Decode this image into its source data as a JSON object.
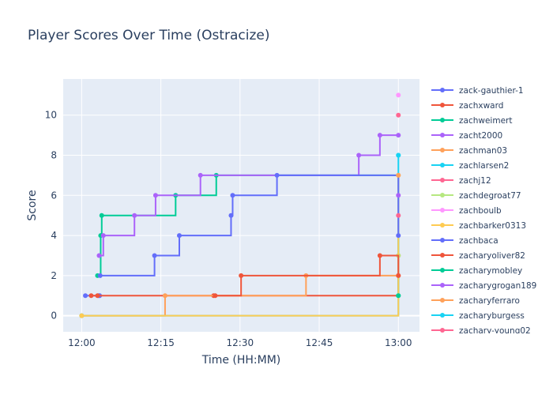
{
  "chart_data": {
    "type": "line",
    "title": "Player Scores Over Time (Ostracize)",
    "xlabel": "Time (HH:MM)",
    "ylabel": "Score",
    "x_ticks": [
      "12:00",
      "12:15",
      "12:30",
      "12:45",
      "13:00"
    ],
    "y_ticks": [
      0,
      2,
      4,
      6,
      8,
      10
    ],
    "xlim": [
      -3.5,
      64
    ],
    "ylim": [
      -0.8,
      11.8
    ],
    "grid": true,
    "legend_position": "right",
    "series": [
      {
        "name": "zack-gauthier-1",
        "color": "#636efa",
        "x": [
          0.7,
          3.2,
          3.4
        ],
        "y": [
          1,
          1,
          1
        ]
      },
      {
        "name": "zachxward",
        "color": "#EF553B",
        "x": [
          1.8,
          3.0,
          25.0,
          60.0
        ],
        "y": [
          1,
          1,
          1,
          2
        ]
      },
      {
        "name": "zachweimert",
        "color": "#00cc96",
        "x": [
          3.0,
          3.6,
          3.8,
          17.8,
          25.5,
          60.0
        ],
        "y": [
          2,
          4,
          5,
          6,
          7,
          1
        ]
      },
      {
        "name": "zacht2000",
        "color": "#ab63fa",
        "x": [
          3.3,
          4.1,
          10.0,
          14.0,
          22.5,
          52.5,
          56.5,
          60.0
        ],
        "y": [
          3,
          4,
          5,
          6,
          7,
          8,
          9,
          9
        ]
      },
      {
        "name": "zachman03",
        "color": "#FFA15A",
        "x": [
          0.0,
          15.8,
          42.5,
          60.0
        ],
        "y": [
          0,
          1,
          2,
          3
        ]
      },
      {
        "name": "zachlarsen2",
        "color": "#19d3f3",
        "x": [
          0.0,
          60.0
        ],
        "y": [
          0,
          8
        ]
      },
      {
        "name": "zachj12",
        "color": "#FF6692",
        "x": [
          60.0
        ],
        "y": [
          10
        ]
      },
      {
        "name": "zachdegroat77",
        "color": "#B6E880",
        "x": [
          60.0
        ],
        "y": [
          3
        ]
      },
      {
        "name": "zachboulb",
        "color": "#FF97FF",
        "x": [
          60.0
        ],
        "y": [
          11
        ]
      },
      {
        "name": "zachbarker0313",
        "color": "#FECB52",
        "x": [
          0.0,
          60.0
        ],
        "y": [
          0,
          7
        ]
      },
      {
        "name": "zachbaca",
        "color": "#636efa",
        "x": [
          3.5,
          13.8,
          18.5,
          28.3,
          28.6,
          37.0,
          60.0
        ],
        "y": [
          2,
          3,
          4,
          5,
          6,
          7,
          4
        ]
      },
      {
        "name": "zacharyoliver82",
        "color": "#EF553B",
        "x": [
          25.3,
          30.2,
          56.5,
          60.0
        ],
        "y": [
          1,
          2,
          3,
          2
        ]
      },
      {
        "name": "zacharymobley",
        "color": "#00cc96",
        "x": [
          60.0
        ],
        "y": [
          1
        ]
      },
      {
        "name": "zacharygrogan189",
        "color": "#ab63fa",
        "x": [
          60.0
        ],
        "y": [
          6
        ]
      },
      {
        "name": "zacharyferraro",
        "color": "#FFA15A",
        "x": [
          60.0
        ],
        "y": [
          7
        ]
      },
      {
        "name": "zacharyburgess",
        "color": "#19d3f3",
        "x": [
          60.0
        ],
        "y": [
          8
        ]
      },
      {
        "name": "zachary-young02",
        "color": "#FF6692",
        "x": [
          60.0
        ],
        "y": [
          5
        ]
      }
    ]
  }
}
